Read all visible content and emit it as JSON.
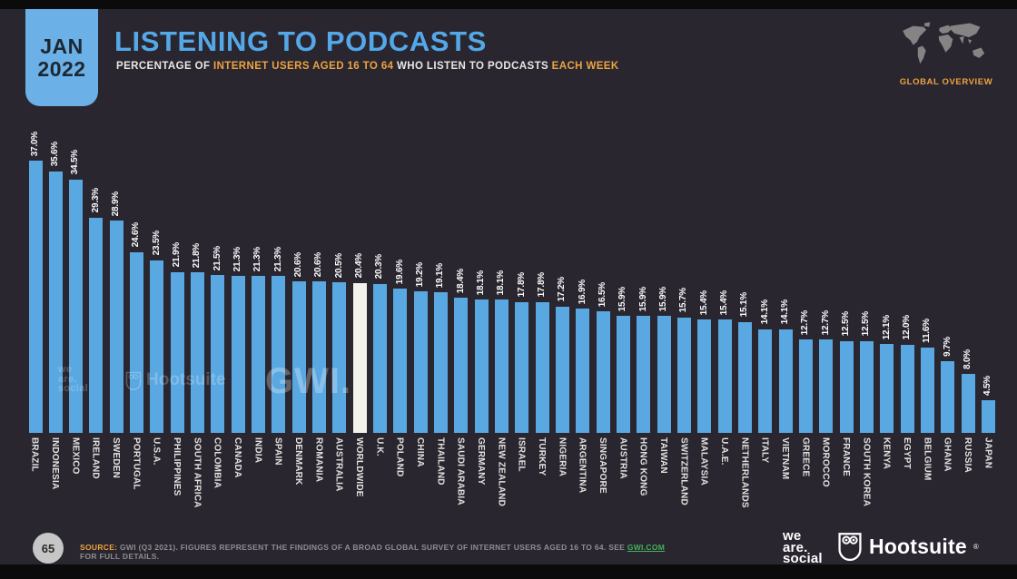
{
  "header": {
    "date_badge": {
      "line1": "JAN",
      "line2": "2022"
    },
    "title": "LISTENING TO PODCASTS",
    "subtitle_segments": [
      {
        "text": "PERCENTAGE OF ",
        "highlight": false
      },
      {
        "text": "INTERNET USERS AGED 16 TO 64",
        "highlight": true
      },
      {
        "text": " WHO LISTEN TO PODCASTS ",
        "highlight": false
      },
      {
        "text": "EACH WEEK",
        "highlight": true
      }
    ],
    "overview_label": "GLOBAL OVERVIEW"
  },
  "chart_data": {
    "type": "bar",
    "title": "Listening to Podcasts",
    "ylabel": "Percentage of internet users aged 16 to 64 who listen to podcasts each week",
    "unit": "%",
    "legend_position": "none",
    "grid": false,
    "ylim": [
      0,
      40
    ],
    "bar_color": "#5aa8e2",
    "highlight_color": "#f3f1ec",
    "highlight_category": "WORLDWIDE",
    "categories": [
      "BRAZIL",
      "INDONESIA",
      "MEXICO",
      "IRELAND",
      "SWEDEN",
      "PORTUGAL",
      "U.S.A.",
      "PHILIPPINES",
      "SOUTH AFRICA",
      "COLOMBIA",
      "CANADA",
      "INDIA",
      "SPAIN",
      "DENMARK",
      "ROMANIA",
      "AUSTRALIA",
      "WORLDWIDE",
      "U.K.",
      "POLAND",
      "CHINA",
      "THAILAND",
      "SAUDI ARABIA",
      "GERMANY",
      "NEW ZEALAND",
      "ISRAEL",
      "TURKEY",
      "NIGERIA",
      "ARGENTINA",
      "SINGAPORE",
      "AUSTRIA",
      "HONG KONG",
      "TAIWAN",
      "SWITZERLAND",
      "MALAYSIA",
      "U.A.E.",
      "NETHERLANDS",
      "ITALY",
      "VIETNAM",
      "GREECE",
      "MOROCCO",
      "FRANCE",
      "SOUTH KOREA",
      "KENYA",
      "EGYPT",
      "BELGIUM",
      "GHANA",
      "RUSSIA",
      "JAPAN"
    ],
    "values": [
      37.0,
      35.6,
      34.5,
      29.3,
      28.9,
      24.6,
      23.5,
      21.9,
      21.8,
      21.5,
      21.3,
      21.3,
      21.3,
      20.6,
      20.6,
      20.5,
      20.4,
      20.3,
      19.6,
      19.2,
      19.1,
      18.4,
      18.1,
      18.1,
      17.8,
      17.8,
      17.2,
      16.9,
      16.5,
      15.9,
      15.9,
      15.9,
      15.7,
      15.4,
      15.4,
      15.1,
      14.1,
      14.1,
      12.7,
      12.7,
      12.5,
      12.5,
      12.1,
      12.0,
      11.6,
      9.7,
      8.0,
      4.5
    ]
  },
  "watermarks": {
    "weare_line1": "we",
    "weare_line2": "are.",
    "weare_line3": "social",
    "hootsuite": "Hootsuite",
    "gwi": "GWI."
  },
  "footer": {
    "page_number": "65",
    "source_prefix": "SOURCE:",
    "source_text": " GWI (Q3 2021). FIGURES REPRESENT THE FINDINGS OF A BROAD GLOBAL SURVEY OF INTERNET USERS AGED 16 TO 64. SEE ",
    "source_link": "GWI.COM",
    "source_suffix": " FOR FULL DETAILS.",
    "weare_line1": "we",
    "weare_line2": "are.",
    "weare_line3": "social",
    "hootsuite": "Hootsuite",
    "registered": "®"
  }
}
